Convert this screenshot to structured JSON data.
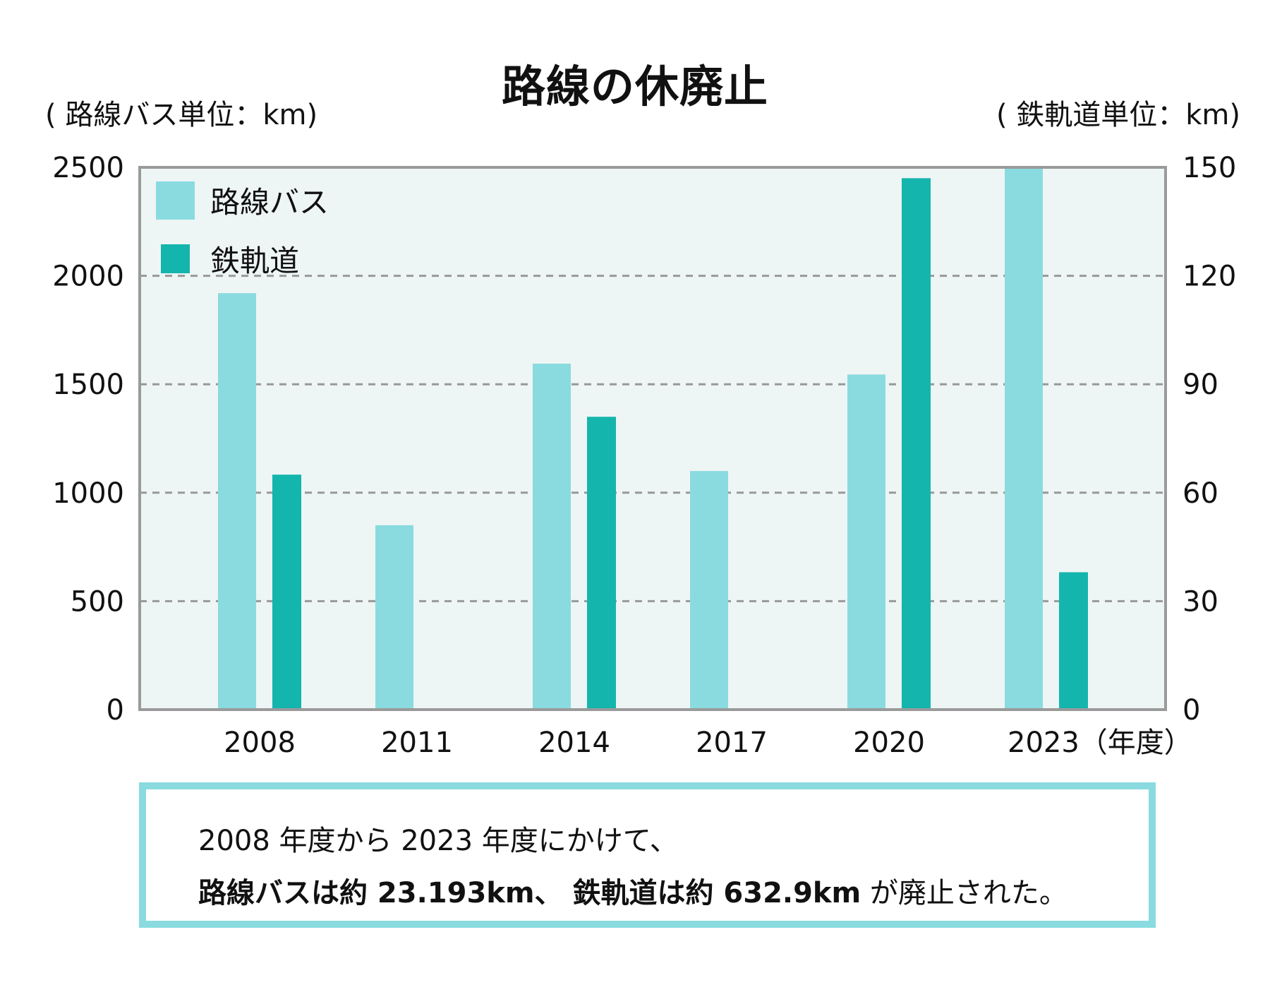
{
  "chart_data": {
    "type": "bar",
    "title": "路線の休廃止",
    "xlabel": "（年度）",
    "ylabel_left": "( 路線バス単位：km)",
    "ylabel_right": "( 鉄軌道単位：km)",
    "categories": [
      "2008",
      "2011",
      "2014",
      "2017",
      "2020",
      "2023"
    ],
    "x_tick_labels": [
      "2008",
      "2011",
      "2014",
      "2017",
      "2020",
      "2023（年度）"
    ],
    "series": [
      {
        "name": "路線バス",
        "axis": "left",
        "color": "#8adbdf",
        "values": [
          1920,
          850,
          1595,
          1100,
          1545,
          2500
        ]
      },
      {
        "name": "鉄軌道",
        "axis": "right",
        "color": "#14b5ad",
        "values": [
          65,
          null,
          81,
          null,
          147,
          38
        ]
      }
    ],
    "y_left": {
      "lim": [
        0,
        2500
      ],
      "ticks": [
        0,
        500,
        1000,
        1500,
        2000,
        2500
      ]
    },
    "y_right": {
      "lim": [
        0,
        150
      ],
      "ticks": [
        0,
        30,
        60,
        90,
        120,
        150
      ]
    },
    "grid": true,
    "legend": "top-left",
    "colors": {
      "plot_bg": "#eef5f5",
      "frame": "#9a9a9a",
      "grid": "#999999"
    }
  },
  "header": {
    "title": "路線の休廃止",
    "unit_left": "( 路線バス単位：km)",
    "unit_right": "( 鉄軌道単位：km)"
  },
  "note": {
    "line1": "2008 年度から 2023 年度にかけて、",
    "line2_bold": "路線バスは約 23.193km、 鉄軌道は約 632.9km",
    "line2_rest": " が廃止された。",
    "border_color": "#8adbdf"
  }
}
